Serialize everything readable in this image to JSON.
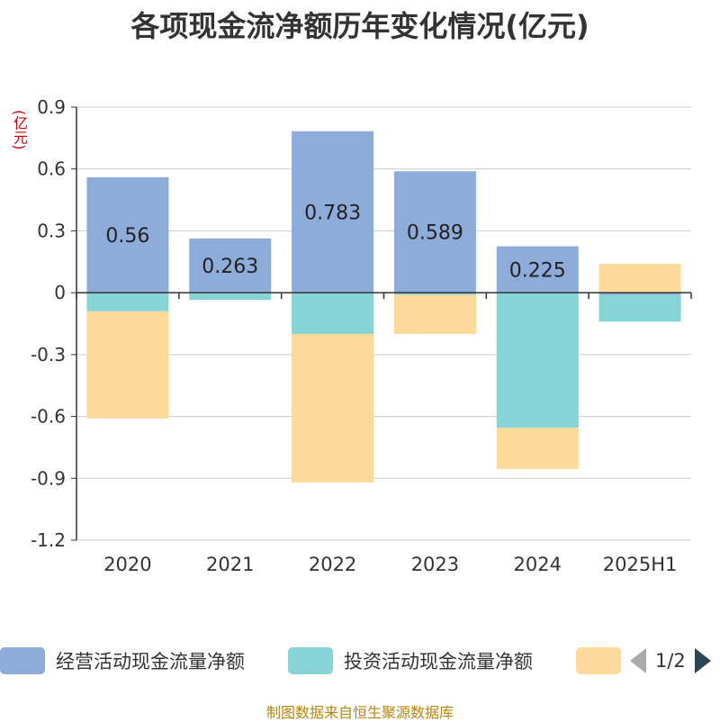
{
  "chart_data": {
    "type": "bar",
    "stacked": true,
    "title": "各项现金流净额历年变化情况(亿元)",
    "unit": "(亿元)",
    "categories": [
      "2020",
      "2021",
      "2022",
      "2023",
      "2024",
      "2025H1"
    ],
    "ylim": [
      -1.2,
      0.9
    ],
    "yticks": [
      0.9,
      0.6,
      0.3,
      0,
      -0.3,
      -0.6,
      -0.9,
      -1.2
    ],
    "grid": true,
    "series": [
      {
        "name": "经营活动现金流量净额",
        "color": "#8eacda",
        "values": [
          0.56,
          0.263,
          0.783,
          0.589,
          0.225,
          -0.01
        ],
        "labels": [
          "0.56",
          "0.263",
          "0.783",
          "0.589",
          "0.225",
          ""
        ]
      },
      {
        "name": "投资活动现金流量净额",
        "color": "#86d4d6",
        "values": [
          -0.09,
          -0.035,
          -0.2,
          -0.01,
          -0.655,
          -0.13
        ]
      },
      {
        "name": "",
        "color": "#fdd99a",
        "values": [
          -0.52,
          0,
          -0.72,
          -0.19,
          -0.2,
          0.14
        ]
      }
    ]
  },
  "legend": {
    "page": "1/2"
  },
  "source": "制图数据来自恒生聚源数据库"
}
